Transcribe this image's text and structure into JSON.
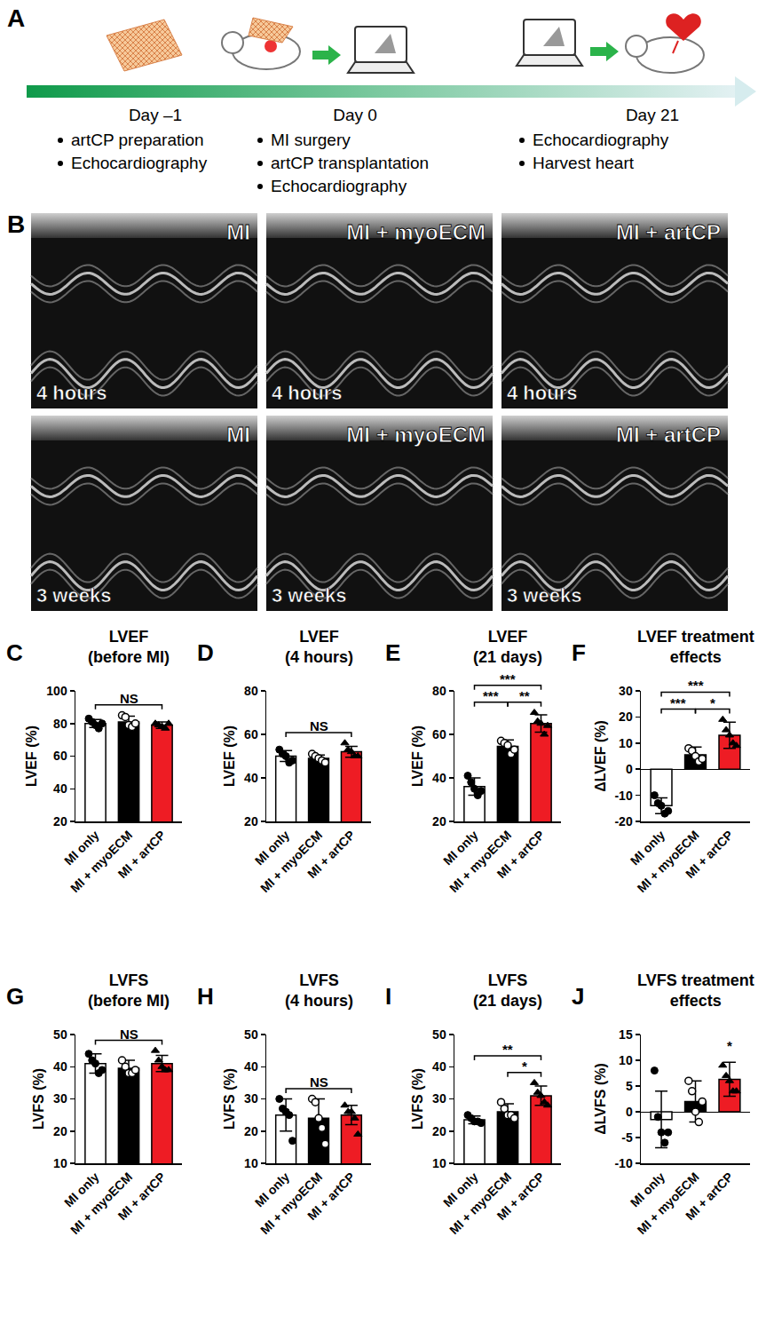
{
  "panel_a": {
    "label": "A",
    "timeline": [
      {
        "day": "Day –1",
        "items": [
          "artCP preparation",
          "Echocardiography"
        ]
      },
      {
        "day": "Day 0",
        "items": [
          "MI surgery",
          "artCP transplantation",
          "Echocardiography"
        ]
      },
      {
        "day": "Day 21",
        "items": [
          "Echocardiography",
          "Harvest heart"
        ]
      }
    ]
  },
  "panel_b": {
    "label": "B",
    "images": [
      {
        "group": "MI",
        "time": "4 hours"
      },
      {
        "group": "MI + myoECM",
        "time": "4 hours"
      },
      {
        "group": "MI + artCP",
        "time": "4 hours"
      },
      {
        "group": "MI",
        "time": "3 weeks"
      },
      {
        "group": "MI + myoECM",
        "time": "3 weeks"
      },
      {
        "group": "MI + artCP",
        "time": "3 weeks"
      }
    ]
  },
  "chart_data": [
    {
      "panel": "C",
      "type": "bar",
      "title": "LVEF\n(before MI)",
      "ylabel": "LVEF (%)",
      "categories": [
        "MI only",
        "MI + myoECM",
        "MI + artCP"
      ],
      "colors": [
        "#ffffff",
        "#000000",
        "#ee1c24"
      ],
      "marker": [
        "circle",
        "circle-open",
        "triangle-up"
      ],
      "grid": false,
      "values": [
        80,
        81,
        79
      ],
      "error": [
        2.5,
        3.5,
        2
      ],
      "points": [
        [
          83,
          81,
          79,
          77,
          80
        ],
        [
          85,
          84,
          79,
          78,
          80
        ],
        [
          80,
          79,
          78,
          77,
          80
        ]
      ],
      "ylim": [
        20,
        100
      ],
      "yticks": [
        20,
        40,
        60,
        80,
        100
      ],
      "significance": [
        {
          "from": 0,
          "to": 2,
          "text": "NS"
        }
      ]
    },
    {
      "panel": "D",
      "type": "bar",
      "title": "LVEF\n(4 hours)",
      "ylabel": "LVEF (%)",
      "categories": [
        "MI only",
        "MI + myoECM",
        "MI + artCP"
      ],
      "colors": [
        "#ffffff",
        "#000000",
        "#ee1c24"
      ],
      "marker": [
        "circle",
        "circle-open",
        "triangle-up"
      ],
      "grid": false,
      "values": [
        50,
        49,
        52
      ],
      "error": [
        2.5,
        1.5,
        2.5
      ],
      "points": [
        [
          53,
          51,
          50,
          47,
          48
        ],
        [
          51,
          50,
          49,
          48,
          47
        ],
        [
          56,
          53,
          52,
          50,
          50
        ]
      ],
      "ylim": [
        20,
        80
      ],
      "yticks": [
        20,
        40,
        60,
        80
      ],
      "significance": [
        {
          "from": 0,
          "to": 2,
          "text": "NS"
        }
      ]
    },
    {
      "panel": "E",
      "type": "bar",
      "title": "LVEF\n(21 days)",
      "ylabel": "LVEF (%)",
      "categories": [
        "MI only",
        "MI + myoECM",
        "MI + artCP"
      ],
      "colors": [
        "#ffffff",
        "#000000",
        "#ee1c24"
      ],
      "marker": [
        "circle",
        "circle-open",
        "triangle-up"
      ],
      "grid": false,
      "values": [
        36,
        54.5,
        65
      ],
      "error": [
        4,
        3,
        4
      ],
      "points": [
        [
          41,
          38,
          35,
          32,
          34
        ],
        [
          57,
          56,
          55,
          51,
          53
        ],
        [
          70,
          66,
          65,
          60,
          64
        ]
      ],
      "ylim": [
        20,
        80
      ],
      "yticks": [
        20,
        40,
        60,
        80
      ],
      "significance": [
        {
          "from": 0,
          "to": 1,
          "text": "***"
        },
        {
          "from": 1,
          "to": 2,
          "text": "**"
        },
        {
          "from": 0,
          "to": 2,
          "text": "***"
        }
      ]
    },
    {
      "panel": "F",
      "type": "bar",
      "title": "LVEF treatment\neffects",
      "ylabel": "ΔLVEF (%)",
      "categories": [
        "MI only",
        "MI + myoECM",
        "MI + artCP"
      ],
      "colors": [
        "#ffffff",
        "#000000",
        "#ee1c24"
      ],
      "marker": [
        "circle",
        "circle-open",
        "triangle-up"
      ],
      "grid": false,
      "values": [
        -14,
        5.5,
        13
      ],
      "error": [
        3,
        3,
        5
      ],
      "points": [
        [
          -10,
          -13,
          -14,
          -17,
          -16
        ],
        [
          8,
          7,
          5,
          3,
          4
        ],
        [
          19,
          15,
          13,
          10,
          9
        ]
      ],
      "ylim": [
        -20,
        30
      ],
      "yticks": [
        -20,
        -10,
        0,
        10,
        20,
        30
      ],
      "significance": [
        {
          "from": 0,
          "to": 1,
          "text": "***"
        },
        {
          "from": 1,
          "to": 2,
          "text": "*"
        },
        {
          "from": 0,
          "to": 2,
          "text": "***"
        }
      ]
    },
    {
      "panel": "G",
      "type": "bar",
      "title": "LVFS\n(before MI)",
      "ylabel": "LVFS (%)",
      "categories": [
        "MI only",
        "MI + myoECM",
        "MI + artCP"
      ],
      "colors": [
        "#ffffff",
        "#000000",
        "#ee1c24"
      ],
      "marker": [
        "circle",
        "circle-open",
        "triangle-up"
      ],
      "grid": false,
      "values": [
        41,
        39.5,
        41
      ],
      "error": [
        3,
        2.5,
        2.5
      ],
      "points": [
        [
          44,
          42,
          41,
          38,
          39
        ],
        [
          42,
          40,
          38,
          38,
          39
        ],
        [
          45,
          42,
          40,
          39,
          39
        ]
      ],
      "ylim": [
        10,
        50
      ],
      "yticks": [
        10,
        20,
        30,
        40,
        50
      ],
      "significance": [
        {
          "from": 0,
          "to": 2,
          "text": "NS"
        }
      ]
    },
    {
      "panel": "H",
      "type": "bar",
      "title": "LVFS\n(4 hours)",
      "ylabel": "LVFS (%)",
      "categories": [
        "MI only",
        "MI + myoECM",
        "MI + artCP"
      ],
      "colors": [
        "#ffffff",
        "#000000",
        "#ee1c24"
      ],
      "marker": [
        "circle",
        "circle-open",
        "triangle-up"
      ],
      "grid": false,
      "values": [
        25,
        24,
        25
      ],
      "error": [
        5,
        6,
        3
      ],
      "points": [
        [
          30,
          27,
          26,
          25,
          17
        ],
        [
          30,
          29,
          24,
          21,
          16
        ],
        [
          28,
          26,
          26,
          24,
          19
        ]
      ],
      "ylim": [
        10,
        50
      ],
      "yticks": [
        10,
        20,
        30,
        40,
        50
      ],
      "significance": [
        {
          "from": 0,
          "to": 2,
          "text": "NS"
        }
      ]
    },
    {
      "panel": "I",
      "type": "bar",
      "title": "LVFS\n(21 days)",
      "ylabel": "LVFS (%)",
      "categories": [
        "MI only",
        "MI + myoECM",
        "MI + artCP"
      ],
      "colors": [
        "#ffffff",
        "#000000",
        "#ee1c24"
      ],
      "marker": [
        "circle",
        "circle-open",
        "triangle-up"
      ],
      "grid": false,
      "values": [
        23.5,
        26,
        31
      ],
      "error": [
        1.2,
        2.5,
        3
      ],
      "points": [
        [
          25,
          24,
          23,
          23,
          22.5
        ],
        [
          29,
          27,
          25,
          25,
          24
        ],
        [
          35,
          32,
          31,
          29,
          28
        ]
      ],
      "ylim": [
        10,
        50
      ],
      "yticks": [
        10,
        20,
        30,
        40,
        50
      ],
      "significance": [
        {
          "from": 1,
          "to": 2,
          "text": "*"
        },
        {
          "from": 0,
          "to": 2,
          "text": "**"
        }
      ]
    },
    {
      "panel": "J",
      "type": "bar",
      "title": "LVFS treatment\neffects",
      "ylabel": "ΔLVFS (%)",
      "categories": [
        "MI only",
        "MI + myoECM",
        "MI + artCP"
      ],
      "colors": [
        "#ffffff",
        "#000000",
        "#ee1c24"
      ],
      "marker": [
        "circle",
        "circle-open",
        "triangle-up"
      ],
      "grid": false,
      "values": [
        -1.5,
        2,
        6.3
      ],
      "error": [
        5.5,
        4,
        3.3
      ],
      "points": [
        [
          8,
          -1,
          -4,
          -6,
          -4
        ],
        [
          6,
          4,
          0,
          -2,
          2
        ],
        [
          9,
          7,
          6,
          4,
          4
        ]
      ],
      "ylim": [
        -10,
        15
      ],
      "yticks": [
        -10,
        -5,
        0,
        5,
        10,
        15
      ],
      "significance": [
        {
          "from": 2,
          "to": 2,
          "text": "*"
        }
      ]
    }
  ]
}
